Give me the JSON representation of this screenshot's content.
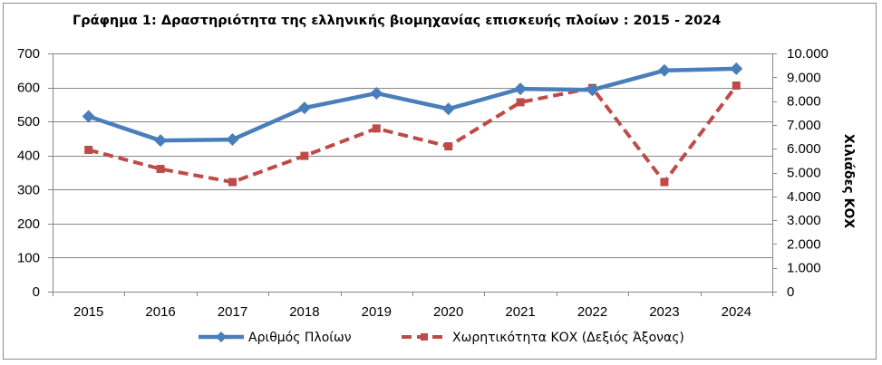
{
  "title": "Γράφημα 1: Δραστηριότητα της ελληνικής βιομηχανίας επισκευής πλοίων : 2015 - 2024",
  "colors": {
    "series1": "#4a7ebb",
    "series2": "#be4b48",
    "grid": "#868686",
    "axis": "#868686"
  },
  "chart_data": {
    "type": "line",
    "title": "Γράφημα 1: Δραστηριότητα της ελληνικής βιομηχανίας επισκευής πλοίων : 2015 - 2024",
    "categories": [
      "2015",
      "2016",
      "2017",
      "2018",
      "2019",
      "2020",
      "2021",
      "2022",
      "2023",
      "2024"
    ],
    "series": [
      {
        "name": "Αριθμός Πλοίων",
        "axis": "left",
        "style": "solid",
        "marker": "diamond",
        "values": [
          515,
          444,
          447,
          540,
          583,
          537,
          596,
          593,
          650,
          655
        ]
      },
      {
        "name": "Χωρητικότητα ΚΟΧ (Δεξιός Άξονας)",
        "axis": "right",
        "style": "dashed",
        "marker": "square",
        "values": [
          5950,
          5150,
          4600,
          5700,
          6850,
          6100,
          7950,
          8550,
          4600,
          8650
        ]
      }
    ],
    "y_left": {
      "min": 0,
      "max": 700,
      "step": 100,
      "tick_labels": [
        "0",
        "100",
        "200",
        "300",
        "400",
        "500",
        "600",
        "700"
      ]
    },
    "y_right": {
      "min": 0,
      "max": 10000,
      "step": 1000,
      "label": "Χιλιάδες ΚΟΧ",
      "tick_labels": [
        "0",
        "1.000",
        "2.000",
        "3.000",
        "4.000",
        "5.000",
        "6.000",
        "7.000",
        "8.000",
        "9.000",
        "10.000"
      ]
    },
    "grid": true,
    "legend": "bottom"
  }
}
